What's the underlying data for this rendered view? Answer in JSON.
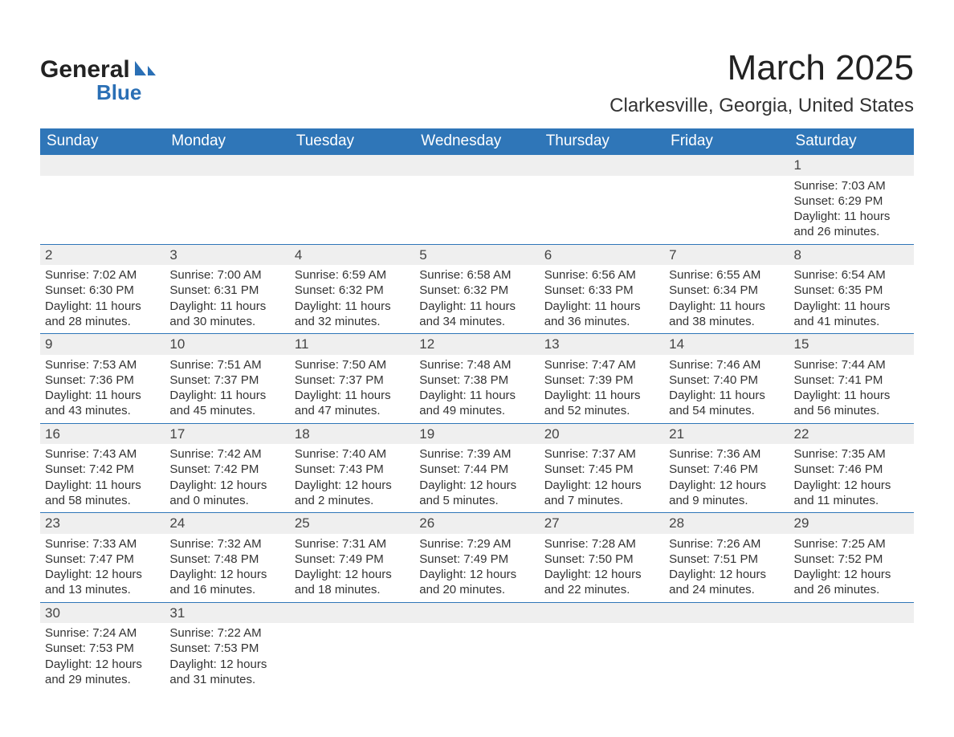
{
  "logo": {
    "word1": "General",
    "word2": "Blue"
  },
  "title": "March 2025",
  "location": "Clarkesville, Georgia, United States",
  "theme": {
    "header_bg": "#2f76b8",
    "header_text": "#ffffff",
    "daynum_bg": "#efefef",
    "cell_text": "#333333",
    "rule": "#2f76b8",
    "page_bg": "#ffffff",
    "logo_text": "#222222",
    "logo_accent": "#2a6fb5",
    "title_fontsize": 44,
    "location_fontsize": 24,
    "header_fontsize": 19,
    "daynum_fontsize": 17,
    "cell_fontsize": 15
  },
  "day_headers": [
    "Sunday",
    "Monday",
    "Tuesday",
    "Wednesday",
    "Thursday",
    "Friday",
    "Saturday"
  ],
  "weeks": [
    [
      null,
      null,
      null,
      null,
      null,
      null,
      {
        "n": "1",
        "sr": "7:03 AM",
        "ss": "6:29 PM",
        "dl": "11 hours and 26 minutes."
      }
    ],
    [
      {
        "n": "2",
        "sr": "7:02 AM",
        "ss": "6:30 PM",
        "dl": "11 hours and 28 minutes."
      },
      {
        "n": "3",
        "sr": "7:00 AM",
        "ss": "6:31 PM",
        "dl": "11 hours and 30 minutes."
      },
      {
        "n": "4",
        "sr": "6:59 AM",
        "ss": "6:32 PM",
        "dl": "11 hours and 32 minutes."
      },
      {
        "n": "5",
        "sr": "6:58 AM",
        "ss": "6:32 PM",
        "dl": "11 hours and 34 minutes."
      },
      {
        "n": "6",
        "sr": "6:56 AM",
        "ss": "6:33 PM",
        "dl": "11 hours and 36 minutes."
      },
      {
        "n": "7",
        "sr": "6:55 AM",
        "ss": "6:34 PM",
        "dl": "11 hours and 38 minutes."
      },
      {
        "n": "8",
        "sr": "6:54 AM",
        "ss": "6:35 PM",
        "dl": "11 hours and 41 minutes."
      }
    ],
    [
      {
        "n": "9",
        "sr": "7:53 AM",
        "ss": "7:36 PM",
        "dl": "11 hours and 43 minutes."
      },
      {
        "n": "10",
        "sr": "7:51 AM",
        "ss": "7:37 PM",
        "dl": "11 hours and 45 minutes."
      },
      {
        "n": "11",
        "sr": "7:50 AM",
        "ss": "7:37 PM",
        "dl": "11 hours and 47 minutes."
      },
      {
        "n": "12",
        "sr": "7:48 AM",
        "ss": "7:38 PM",
        "dl": "11 hours and 49 minutes."
      },
      {
        "n": "13",
        "sr": "7:47 AM",
        "ss": "7:39 PM",
        "dl": "11 hours and 52 minutes."
      },
      {
        "n": "14",
        "sr": "7:46 AM",
        "ss": "7:40 PM",
        "dl": "11 hours and 54 minutes."
      },
      {
        "n": "15",
        "sr": "7:44 AM",
        "ss": "7:41 PM",
        "dl": "11 hours and 56 minutes."
      }
    ],
    [
      {
        "n": "16",
        "sr": "7:43 AM",
        "ss": "7:42 PM",
        "dl": "11 hours and 58 minutes."
      },
      {
        "n": "17",
        "sr": "7:42 AM",
        "ss": "7:42 PM",
        "dl": "12 hours and 0 minutes."
      },
      {
        "n": "18",
        "sr": "7:40 AM",
        "ss": "7:43 PM",
        "dl": "12 hours and 2 minutes."
      },
      {
        "n": "19",
        "sr": "7:39 AM",
        "ss": "7:44 PM",
        "dl": "12 hours and 5 minutes."
      },
      {
        "n": "20",
        "sr": "7:37 AM",
        "ss": "7:45 PM",
        "dl": "12 hours and 7 minutes."
      },
      {
        "n": "21",
        "sr": "7:36 AM",
        "ss": "7:46 PM",
        "dl": "12 hours and 9 minutes."
      },
      {
        "n": "22",
        "sr": "7:35 AM",
        "ss": "7:46 PM",
        "dl": "12 hours and 11 minutes."
      }
    ],
    [
      {
        "n": "23",
        "sr": "7:33 AM",
        "ss": "7:47 PM",
        "dl": "12 hours and 13 minutes."
      },
      {
        "n": "24",
        "sr": "7:32 AM",
        "ss": "7:48 PM",
        "dl": "12 hours and 16 minutes."
      },
      {
        "n": "25",
        "sr": "7:31 AM",
        "ss": "7:49 PM",
        "dl": "12 hours and 18 minutes."
      },
      {
        "n": "26",
        "sr": "7:29 AM",
        "ss": "7:49 PM",
        "dl": "12 hours and 20 minutes."
      },
      {
        "n": "27",
        "sr": "7:28 AM",
        "ss": "7:50 PM",
        "dl": "12 hours and 22 minutes."
      },
      {
        "n": "28",
        "sr": "7:26 AM",
        "ss": "7:51 PM",
        "dl": "12 hours and 24 minutes."
      },
      {
        "n": "29",
        "sr": "7:25 AM",
        "ss": "7:52 PM",
        "dl": "12 hours and 26 minutes."
      }
    ],
    [
      {
        "n": "30",
        "sr": "7:24 AM",
        "ss": "7:53 PM",
        "dl": "12 hours and 29 minutes."
      },
      {
        "n": "31",
        "sr": "7:22 AM",
        "ss": "7:53 PM",
        "dl": "12 hours and 31 minutes."
      },
      null,
      null,
      null,
      null,
      null
    ]
  ],
  "labels": {
    "sunrise": "Sunrise: ",
    "sunset": "Sunset: ",
    "daylight": "Daylight: "
  }
}
